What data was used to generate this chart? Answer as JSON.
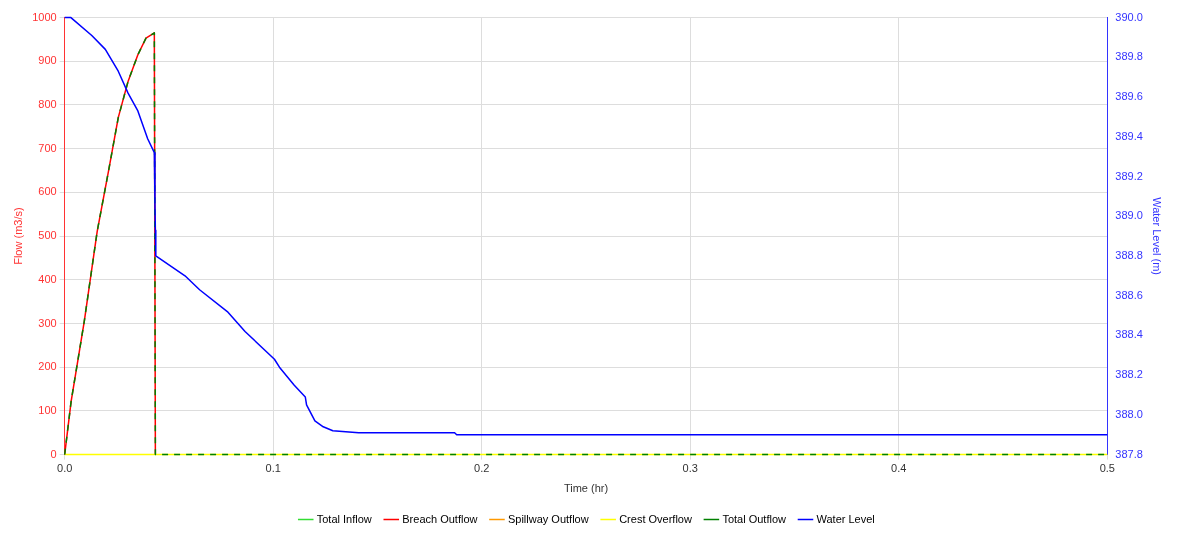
{
  "chart_data": {
    "type": "line",
    "xlabel": "Time (hr)",
    "ylabel": "Flow (m3/s)",
    "y2label": "Water Level (m)",
    "xlim": [
      0,
      0.5
    ],
    "xticks": [
      {
        "value": 0,
        "label": "0.0"
      },
      0.1,
      0.2,
      0.3,
      0.4,
      0.5
    ],
    "ylim": [
      0,
      1000
    ],
    "yticks": [
      0,
      100,
      200,
      300,
      400,
      500,
      600,
      700,
      800,
      900,
      1000
    ],
    "y2lim": [
      387.8,
      390.0
    ],
    "y2ticks": [
      {
        "value": 387.8,
        "label": "387.8"
      },
      {
        "value": 388.0,
        "label": "388.0"
      },
      388.2,
      388.4,
      388.6,
      388.8,
      {
        "value": 389.0,
        "label": "389.0"
      },
      389.2,
      389.4,
      389.6,
      389.8,
      {
        "value": 390.0,
        "label": "390.0"
      }
    ],
    "grid": true,
    "legend": "bottom",
    "marker": "none",
    "line_style": "solid",
    "series": [
      {
        "name": "Total Inflow",
        "color": "#33dd33"
      },
      {
        "name": "Breach Outflow",
        "color": "#ff0000",
        "x": [
          0,
          0.0031,
          0.0094,
          0.0156,
          0.021,
          0.0257,
          0.0304,
          0.0351,
          0.039,
          0.043,
          0.0435
        ],
        "values": [
          0,
          122,
          305,
          511,
          648,
          771,
          854,
          915,
          953,
          965,
          0
        ]
      },
      {
        "name": "Spillway Outflow",
        "color": "#ff9900"
      },
      {
        "name": "Crest Overflow",
        "color": "#ffff00",
        "x": [
          0,
          0.5
        ],
        "values": [
          0,
          0
        ]
      },
      {
        "name": "Total Outflow",
        "color": "#008000",
        "line_style": "dashed",
        "x": [
          0,
          0.0031,
          0.0094,
          0.0156,
          0.021,
          0.0257,
          0.0304,
          0.0351,
          0.039,
          0.043,
          0.0435,
          0.5
        ],
        "values": [
          0,
          122,
          305,
          511,
          648,
          771,
          854,
          915,
          953,
          965,
          0,
          0
        ]
      },
      {
        "name": "Water Level",
        "color": "#0000ff",
        "axis": "y2",
        "x": [
          0,
          0.003,
          0.013,
          0.0195,
          0.0257,
          0.0304,
          0.0351,
          0.0398,
          0.043,
          0.0433,
          0.0435,
          0.0437,
          0.0577,
          0.0647,
          0.078,
          0.0865,
          0.1006,
          0.103,
          0.11,
          0.1154,
          0.116,
          0.12,
          0.124,
          0.1286,
          0.141,
          0.187,
          0.188,
          0.5
        ],
        "values": [
          390.0,
          390.0,
          389.91,
          389.84,
          389.73,
          389.62,
          389.53,
          389.39,
          389.32,
          389.06,
          388.93,
          388.8,
          388.7,
          388.63,
          388.52,
          388.42,
          388.28,
          388.24,
          388.15,
          388.09,
          388.05,
          387.97,
          387.94,
          387.92,
          387.91,
          387.91,
          387.9,
          387.9
        ]
      }
    ]
  }
}
